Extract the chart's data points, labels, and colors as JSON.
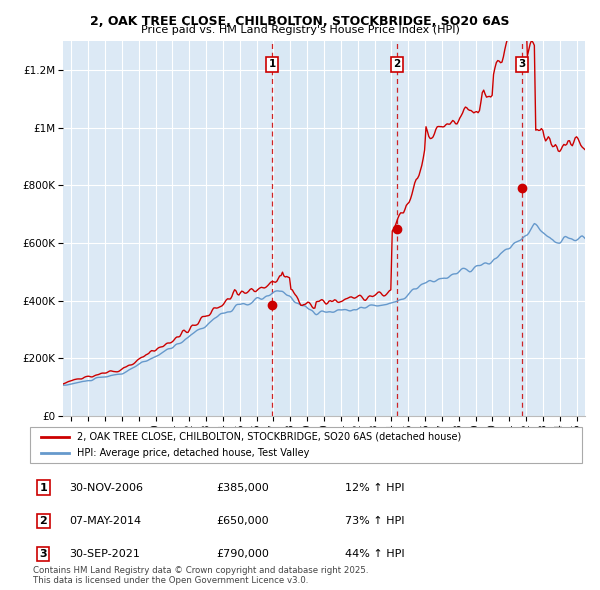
{
  "title1": "2, OAK TREE CLOSE, CHILBOLTON, STOCKBRIDGE, SO20 6AS",
  "title2": "Price paid vs. HM Land Registry's House Price Index (HPI)",
  "legend_label_red": "2, OAK TREE CLOSE, CHILBOLTON, STOCKBRIDGE, SO20 6AS (detached house)",
  "legend_label_blue": "HPI: Average price, detached house, Test Valley",
  "sales": [
    {
      "label": "1",
      "date_num": 2006.92,
      "price": 385000,
      "pct": "12% ↑ HPI",
      "date_str": "30-NOV-2006"
    },
    {
      "label": "2",
      "date_num": 2014.35,
      "price": 650000,
      "pct": "73% ↑ HPI",
      "date_str": "07-MAY-2014"
    },
    {
      "label": "3",
      "date_num": 2021.75,
      "price": 790000,
      "pct": "44% ↑ HPI",
      "date_str": "30-SEP-2021"
    }
  ],
  "red_color": "#cc0000",
  "blue_color": "#6699cc",
  "shade_color": "#d8e8f4",
  "bg_color": "#dce9f5",
  "grid_color": "#ffffff",
  "vline_color": "#cc0000",
  "ylim": [
    0,
    1300000
  ],
  "xlim_start": 1994.5,
  "xlim_end": 2025.5,
  "footer": "Contains HM Land Registry data © Crown copyright and database right 2025.\nThis data is licensed under the Open Government Licence v3.0."
}
